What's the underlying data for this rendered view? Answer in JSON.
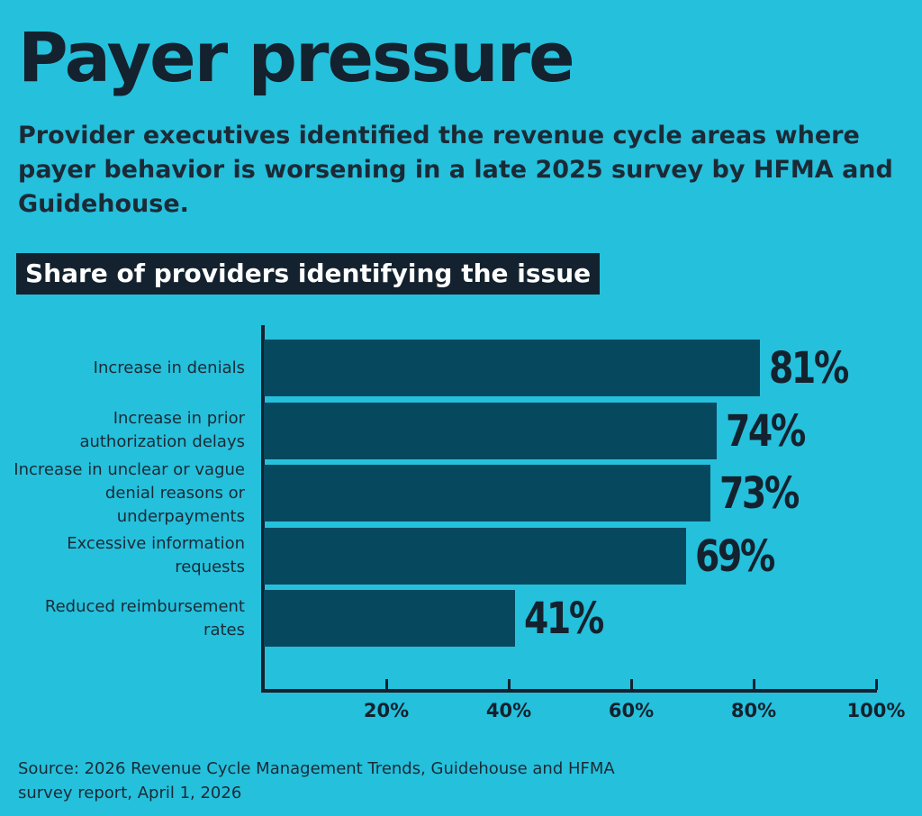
{
  "title": "Payer pressure",
  "subtitle": "Provider executives identified the revenue cycle areas where payer behavior is worsening in a late 2025 survey by HFMA and Guidehouse.",
  "source": "Source: 2026 Revenue Cycle Management Trends, Guidehouse and HFMA survey report, April 1, 2026",
  "colors": {
    "background": "#25c0dc",
    "bar": "#06495f",
    "text": "#13222e"
  },
  "chart_data": {
    "type": "bar",
    "orientation": "horizontal",
    "title": "Share of providers identifying the issue",
    "categories": [
      "Increase in denials",
      "Increase in prior authorization delays",
      "Increase in unclear or vague denial reasons or underpayments",
      "Excessive information requests",
      "Reduced reimbursement rates"
    ],
    "values": [
      81,
      74,
      73,
      69,
      41
    ],
    "value_labels": [
      "81%",
      "74%",
      "73%",
      "69%",
      "41%"
    ],
    "xlim": [
      0,
      100
    ],
    "xticks": [
      20,
      40,
      60,
      80,
      100
    ],
    "xtick_labels": [
      "20%",
      "40%",
      "60%",
      "80%",
      "100%"
    ],
    "grid": false,
    "legend": "none"
  }
}
